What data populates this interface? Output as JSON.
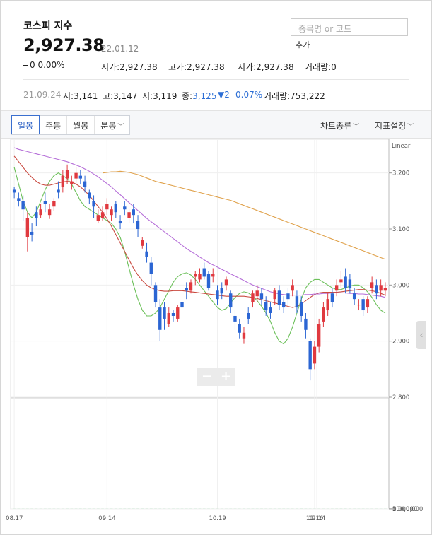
{
  "header": {
    "title": "코스피 지수",
    "price": "2,927.38",
    "date": "22.01.12",
    "change": "0 0.00%",
    "change_icon": "dash-icon",
    "stats": [
      {
        "label": "시가",
        "value": "2,927.38"
      },
      {
        "label": "고가",
        "value": "2,927.38"
      },
      {
        "label": "저가",
        "value": "2,927.38"
      },
      {
        "label": "거래량",
        "value": "0"
      }
    ]
  },
  "search": {
    "placeholder": "종목명 or 코드",
    "add_label": "추가"
  },
  "info_bar": {
    "date": "21.09.24",
    "open": "시:3,141",
    "high": "고:3,147",
    "low": "저:3,119",
    "close_label": "종:",
    "close_value": "3,125",
    "change": "▼2 -0.07%",
    "volume": "거래량:753,222"
  },
  "toolbar": {
    "tabs": [
      "일봉",
      "주봉",
      "월봉",
      "분봉"
    ],
    "active_tab": "일봉",
    "chart_type_label": "차트종류",
    "indicator_label": "지표설정"
  },
  "colors": {
    "up": "#e0393f",
    "down": "#2b65d3",
    "volume": "#5cc97a",
    "ma5": "#6cc05a",
    "ma20": "#c94a40",
    "ma60": "#b56ed8",
    "ma120": "#e0a24c"
  },
  "chart_data": {
    "type": "candlestick",
    "scale_label": "Linear",
    "y_ticks": [
      "3,200",
      "3,100",
      "3,000",
      "2,900",
      "2,800"
    ],
    "y_range": [
      2800,
      3250
    ],
    "volume_ticks": [
      "1,000,000",
      "500,000",
      "0"
    ],
    "volume_range": [
      0,
      1100000
    ],
    "x_ticks": [
      "08.17",
      "09.14",
      "10.19",
      "11.16",
      "12.14"
    ],
    "series": [
      {
        "name": "ma5",
        "values": [
          3210,
          3180,
          3150,
          3130,
          3120,
          3130,
          3150,
          3170,
          3185,
          3195,
          3200,
          3195,
          3190,
          3180,
          3165,
          3150,
          3140,
          3135,
          3130,
          3125,
          3120,
          3115,
          3110,
          3100,
          3085,
          3060,
          3030,
          3000,
          2975,
          2955,
          2945,
          2945,
          2950,
          2960,
          2975,
          2990,
          3005,
          3015,
          3020,
          3022,
          3018,
          3010,
          3000,
          2990,
          2980,
          2970,
          2960,
          2955,
          2958,
          2968,
          2978,
          2985,
          2988,
          2986,
          2980,
          2972,
          2962,
          2950,
          2935,
          2915,
          2900,
          2895,
          2905,
          2925,
          2950,
          2975,
          2995,
          3005,
          3010,
          3010,
          3005,
          3000,
          2995,
          2992,
          2992,
          2995,
          2998,
          3000,
          3000,
          2995,
          2988,
          2978,
          2965,
          2955,
          2950
        ]
      },
      {
        "name": "ma20",
        "values": [
          3230,
          3220,
          3210,
          3200,
          3192,
          3185,
          3180,
          3178,
          3178,
          3180,
          3182,
          3184,
          3185,
          3184,
          3180,
          3175,
          3168,
          3160,
          3150,
          3140,
          3130,
          3118,
          3105,
          3090,
          3075,
          3060,
          3045,
          3030,
          3018,
          3008,
          3000,
          2995,
          2992,
          2990,
          2989,
          2989,
          2990,
          2990,
          2990,
          2989,
          2988,
          2987,
          2986,
          2985,
          2984,
          2983,
          2982,
          2981,
          2980,
          2980,
          2980,
          2980,
          2980,
          2979,
          2978,
          2976,
          2974,
          2972,
          2970,
          2968,
          2966,
          2964,
          2962,
          2960,
          2962,
          2966,
          2972,
          2978,
          2983,
          2986,
          2987,
          2987,
          2987,
          2987,
          2988,
          2989,
          2990,
          2991,
          2992,
          2992,
          2991,
          2990,
          2988,
          2985,
          2982
        ]
      },
      {
        "name": "ma60",
        "values": [
          3245,
          3242,
          3240,
          3238,
          3236,
          3234,
          3232,
          3230,
          3228,
          3226,
          3224,
          3222,
          3220,
          3217,
          3214,
          3211,
          3207,
          3203,
          3198,
          3193,
          3187,
          3181,
          3175,
          3168,
          3161,
          3154,
          3147,
          3140,
          3133,
          3126,
          3119,
          3113,
          3107,
          3101,
          3095,
          3089,
          3083,
          3077,
          3071,
          3065,
          3060,
          3055,
          3050,
          3045,
          3040,
          3036,
          3032,
          3028,
          3024,
          3020,
          3016,
          3012,
          3008,
          3004,
          3000,
          2997,
          2994,
          2991,
          2988,
          2986,
          2984,
          2983,
          2982,
          2982,
          2982,
          2982,
          2983,
          2983,
          2984,
          2984,
          2985,
          2985,
          2986,
          2986,
          2986,
          2986,
          2985,
          2985,
          2984,
          2984,
          2983,
          2982,
          2981,
          2980,
          2978
        ]
      },
      {
        "name": "ma120",
        "values": [
          null,
          null,
          null,
          null,
          null,
          null,
          null,
          null,
          null,
          null,
          null,
          null,
          null,
          null,
          null,
          null,
          null,
          null,
          null,
          null,
          3200,
          3201,
          3202,
          3202,
          3203,
          3202,
          3201,
          3199,
          3197,
          3194,
          3191,
          3188,
          3185,
          3183,
          3181,
          3179,
          3177,
          3175,
          3173,
          3171,
          3169,
          3167,
          3165,
          3163,
          3161,
          3159,
          3157,
          3155,
          3153,
          3151,
          3148,
          3145,
          3142,
          3139,
          3136,
          3133,
          3130,
          3127,
          3124,
          3121,
          3118,
          3115,
          3112,
          3109,
          3106,
          3103,
          3100,
          3097,
          3094,
          3091,
          3088,
          3085,
          3082,
          3079,
          3076,
          3073,
          3070,
          3067,
          3064,
          3061,
          3058,
          3055,
          3052,
          3049,
          3046
        ]
      }
    ],
    "candles": [
      [
        3170,
        3165,
        3155,
        3175
      ],
      [
        3155,
        3150,
        3140,
        3165
      ],
      [
        3150,
        3135,
        3115,
        3160
      ],
      [
        3085,
        3120,
        3060,
        3130
      ],
      [
        3095,
        3090,
        3078,
        3110
      ],
      [
        3130,
        3120,
        3105,
        3140
      ],
      [
        3125,
        3135,
        3120,
        3145
      ],
      [
        3150,
        3145,
        3130,
        3165
      ],
      [
        3125,
        3135,
        3118,
        3145
      ],
      [
        3140,
        3150,
        3132,
        3155
      ],
      [
        3170,
        3165,
        3155,
        3185
      ],
      [
        3175,
        3195,
        3165,
        3205
      ],
      [
        3190,
        3205,
        3180,
        3215
      ],
      [
        3180,
        3185,
        3170,
        3195
      ],
      [
        3190,
        3200,
        3180,
        3210
      ],
      [
        3195,
        3190,
        3180,
        3205
      ],
      [
        3185,
        3175,
        3165,
        3195
      ],
      [
        3165,
        3155,
        3145,
        3170
      ],
      [
        3150,
        3140,
        3120,
        3160
      ],
      [
        3115,
        3125,
        3110,
        3135
      ],
      [
        3120,
        3130,
        3115,
        3140
      ],
      [
        3135,
        3145,
        3125,
        3155
      ],
      [
        3125,
        3135,
        3115,
        3140
      ],
      [
        3145,
        3130,
        3120,
        3150
      ],
      [
        3115,
        3110,
        3100,
        3125
      ],
      [
        3140,
        3135,
        3125,
        3150
      ],
      [
        3120,
        3130,
        3110,
        3135
      ],
      [
        3135,
        3125,
        3110,
        3145
      ],
      [
        3115,
        3100,
        3085,
        3125
      ],
      [
        3070,
        3080,
        3065,
        3085
      ],
      [
        3060,
        3050,
        3040,
        3075
      ],
      [
        3040,
        3020,
        3000,
        3050
      ],
      [
        3000,
        2970,
        2960,
        3005
      ],
      [
        2960,
        2920,
        2900,
        2975
      ],
      [
        2960,
        2940,
        2920,
        2970
      ],
      [
        2930,
        2950,
        2925,
        2960
      ],
      [
        2950,
        2945,
        2935,
        2955
      ],
      [
        2940,
        2960,
        2935,
        2965
      ],
      [
        2970,
        2960,
        2950,
        2985
      ],
      [
        2995,
        2990,
        2975,
        3005
      ],
      [
        2990,
        3005,
        2985,
        3010
      ],
      [
        3015,
        3020,
        3000,
        3025
      ],
      [
        3010,
        3020,
        3005,
        3030
      ],
      [
        3030,
        3015,
        3010,
        3040
      ],
      [
        3020,
        2995,
        2990,
        3025
      ],
      [
        3015,
        3020,
        3005,
        3030
      ],
      [
        2990,
        2975,
        2965,
        3000
      ],
      [
        2995,
        2985,
        2975,
        3005
      ],
      [
        3000,
        3010,
        2990,
        3015
      ],
      [
        2985,
        2960,
        2950,
        2990
      ],
      [
        2945,
        2935,
        2920,
        2955
      ],
      [
        2930,
        2915,
        2905,
        2940
      ],
      [
        2905,
        2915,
        2895,
        2925
      ],
      [
        2950,
        2940,
        2930,
        2960
      ],
      [
        2970,
        2985,
        2960,
        2990
      ],
      [
        2980,
        2990,
        2970,
        3000
      ],
      [
        2985,
        2975,
        2965,
        2995
      ],
      [
        2970,
        2955,
        2945,
        2980
      ],
      [
        2960,
        2950,
        2940,
        2970
      ],
      [
        2975,
        2990,
        2965,
        2995
      ],
      [
        2990,
        2965,
        2955,
        3000
      ],
      [
        2970,
        2960,
        2950,
        2980
      ],
      [
        2985,
        2975,
        2965,
        2995
      ],
      [
        2990,
        3000,
        2980,
        3010
      ],
      [
        2980,
        2960,
        2950,
        2990
      ],
      [
        2970,
        2945,
        2935,
        2980
      ],
      [
        2940,
        2920,
        2905,
        2950
      ],
      [
        2900,
        2850,
        2830,
        2905
      ],
      [
        2860,
        2890,
        2850,
        2900
      ],
      [
        2890,
        2930,
        2880,
        2940
      ],
      [
        2935,
        2960,
        2925,
        2970
      ],
      [
        2955,
        2975,
        2945,
        2985
      ],
      [
        2985,
        2970,
        2960,
        2995
      ],
      [
        2990,
        3000,
        2980,
        3010
      ],
      [
        3005,
        3010,
        2995,
        3025
      ],
      [
        3015,
        2995,
        2985,
        3030
      ],
      [
        3010,
        2995,
        2985,
        3020
      ],
      [
        2985,
        2975,
        2965,
        2995
      ],
      [
        2965,
        2965,
        2955,
        2975
      ],
      [
        2975,
        2955,
        2945,
        2980
      ],
      [
        2960,
        2975,
        2950,
        2980
      ],
      [
        2995,
        3005,
        2985,
        3015
      ],
      [
        3000,
        2985,
        2975,
        3010
      ],
      [
        2990,
        3000,
        2980,
        3010
      ],
      [
        2990,
        2995,
        2980,
        3005
      ]
    ],
    "volumes": [
      640,
      670,
      610,
      640,
      670,
      640,
      560,
      620,
      650,
      610,
      620,
      560,
      720,
      650,
      720,
      820,
      760,
      700,
      680,
      720,
      640,
      620,
      700,
      700,
      760,
      840,
      860,
      830,
      860,
      850,
      860,
      830,
      780,
      730,
      720,
      680,
      700,
      740,
      690,
      760,
      800,
      700,
      780,
      720,
      690,
      640,
      660,
      600,
      580,
      620,
      660,
      640,
      700,
      620,
      700,
      740,
      780,
      650,
      640,
      700,
      750,
      760,
      700,
      640,
      760,
      800,
      700,
      620,
      620,
      650,
      600,
      640,
      630,
      780,
      800,
      820,
      720,
      680,
      620,
      680,
      560,
      600,
      640,
      520,
      600
    ]
  }
}
